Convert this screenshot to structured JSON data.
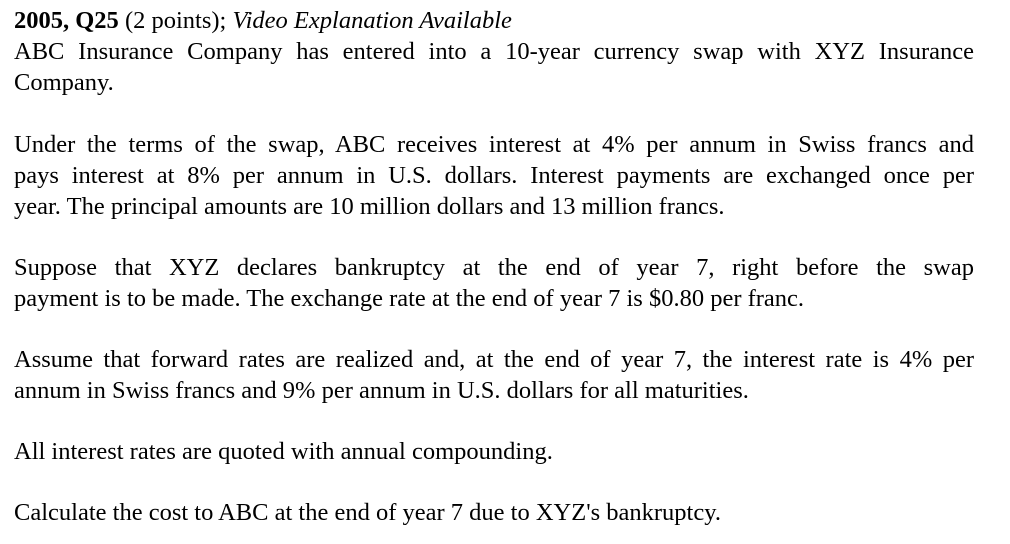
{
  "question": {
    "id": "2005, Q25",
    "points": "(2 points);",
    "note": "Video Explanation Available"
  },
  "paragraphs": {
    "intro_line1": "ABC Insurance Company has entered into a 10-year currency swap with XYZ Insurance",
    "intro_line2": "Company.",
    "terms_line1": "Under the terms of the swap, ABC receives interest at 4% per annum in Swiss francs and",
    "terms_line2": "pays interest at 8% per annum in U.S. dollars. Interest payments are exchanged once per",
    "terms_line3": "year. The principal amounts are 10 million dollars and 13 million francs.",
    "suppose_line1": "Suppose that XYZ declares bankruptcy at the end of year 7, right before the swap",
    "suppose_line2": "payment is to be made. The exchange rate at the end of year 7 is $0.80 per franc.",
    "assume_line1": "Assume that forward rates are realized and, at the end of year 7, the interest rate is 4% per",
    "assume_line2": "annum in Swiss francs and 9% per annum in U.S. dollars for all maturities.",
    "compounding": "All interest rates are quoted with annual compounding.",
    "task": "Calculate the cost to ABC at the end of year 7 due to XYZ's bankruptcy."
  }
}
